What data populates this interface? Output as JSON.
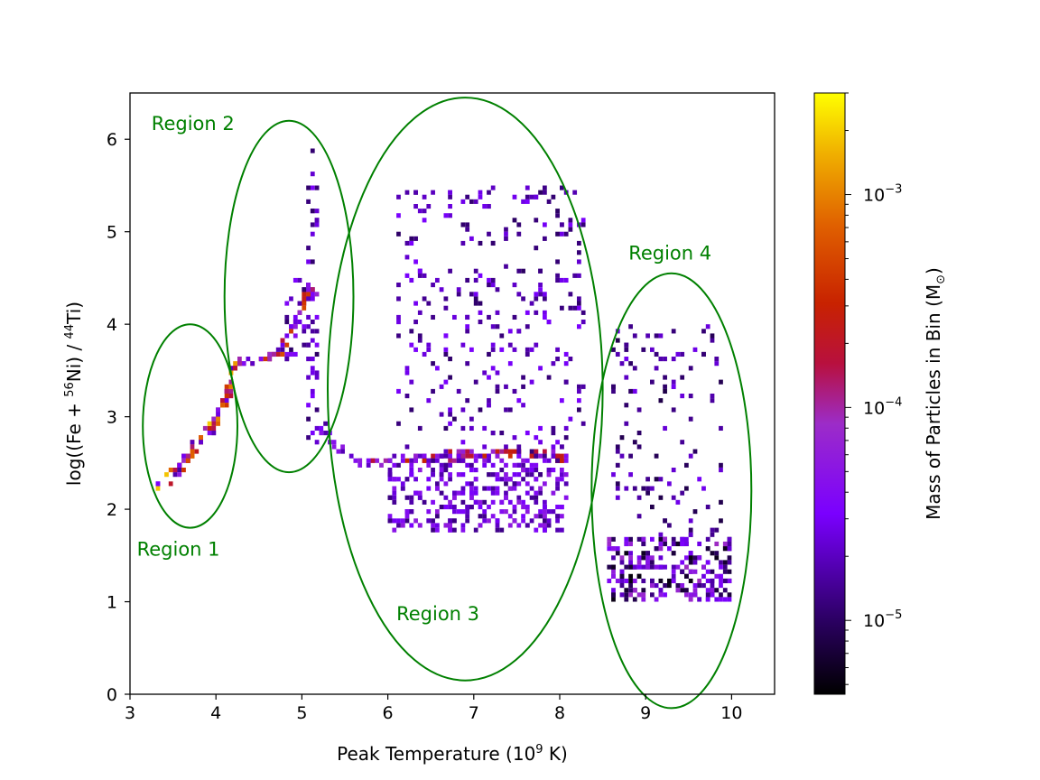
{
  "chart_data": {
    "type": "heatmap",
    "title": "",
    "xlabel": {
      "pre": "Peak Temperature (10",
      "sup": "9",
      "post": " K)"
    },
    "ylabel": {
      "p1": "log((Fe + ",
      "s1": "56",
      "p2": "Ni) / ",
      "s2": "44",
      "p3": "Ti)"
    },
    "xlim": [
      3,
      10.5
    ],
    "ylim": [
      0,
      6.5
    ],
    "xticks": [
      3,
      4,
      5,
      6,
      7,
      8,
      9,
      10
    ],
    "yticks": [
      0,
      1,
      2,
      3,
      4,
      5,
      6
    ],
    "colorbar": {
      "label": {
        "pre": "Mass of Particles in Bin (M",
        "sub": "⊙",
        "post": ")"
      },
      "scale": "log",
      "range": [
        4.5e-06,
        0.003
      ],
      "ticks": [
        {
          "value": 1e-05,
          "base": "10",
          "exp": "−5"
        },
        {
          "value": 0.0001,
          "base": "10",
          "exp": "−4"
        },
        {
          "value": 0.001,
          "base": "10",
          "exp": "−3"
        }
      ],
      "colormap": "gnuplot",
      "colors": [
        "#000000",
        "#7c00ff",
        "#c01e00",
        "#ffff00"
      ]
    },
    "regions": [
      {
        "label": "Region 1",
        "center": [
          3.7,
          2.9
        ],
        "semi_axes": [
          0.55,
          1.1
        ],
        "label_at": [
          3.08,
          1.5
        ]
      },
      {
        "label": "Region 2",
        "center": [
          4.85,
          4.3
        ],
        "semi_axes": [
          0.75,
          1.9
        ],
        "label_at": [
          3.25,
          6.1
        ]
      },
      {
        "label": "Region 3",
        "center": [
          6.9,
          3.3
        ],
        "semi_axes": [
          1.6,
          3.15
        ],
        "label_at": [
          6.1,
          0.8
        ]
      },
      {
        "label": "Region 4",
        "center": [
          9.3,
          2.2
        ],
        "semi_axes": [
          0.93,
          2.35
        ],
        "label_at": [
          8.8,
          4.7
        ]
      }
    ],
    "point_groups": [
      {
        "name": "region1-track",
        "path": [
          [
            3.35,
            2.25
          ],
          [
            3.55,
            2.4
          ],
          [
            3.75,
            2.65
          ],
          [
            3.95,
            2.85
          ],
          [
            4.1,
            3.15
          ],
          [
            4.2,
            3.55
          ]
        ],
        "spread": 0.07,
        "count": 90,
        "mass_range": [
          1.5e-05,
          0.002
        ]
      },
      {
        "name": "region2-track",
        "path": [
          [
            4.2,
            3.55
          ],
          [
            4.5,
            3.62
          ],
          [
            4.72,
            3.7
          ],
          [
            4.9,
            3.95
          ],
          [
            5.05,
            4.3
          ],
          [
            5.15,
            4.35
          ]
        ],
        "spread": 0.04,
        "count": 70,
        "mass_range": [
          1.5e-05,
          0.0006
        ]
      },
      {
        "name": "region2-spike",
        "box": [
          5.05,
          5.18,
          2.7,
          6.0
        ],
        "count": 45,
        "mass_range": [
          1e-05,
          4e-05
        ]
      },
      {
        "name": "region2-right",
        "box": [
          4.8,
          5.15,
          3.6,
          4.5
        ],
        "count": 30,
        "mass_range": [
          1e-05,
          5e-05
        ]
      },
      {
        "name": "band-2.5",
        "path": [
          [
            5.8,
            2.5
          ],
          [
            6.3,
            2.55
          ],
          [
            6.8,
            2.58
          ],
          [
            7.3,
            2.62
          ],
          [
            7.9,
            2.58
          ],
          [
            8.05,
            2.55
          ]
        ],
        "spread": 0.04,
        "count": 90,
        "mass_range": [
          6e-05,
          0.0004
        ]
      },
      {
        "name": "region3-transition",
        "path": [
          [
            5.25,
            2.9
          ],
          [
            5.4,
            2.7
          ],
          [
            5.6,
            2.55
          ],
          [
            5.8,
            2.5
          ]
        ],
        "spread": 0.05,
        "count": 18,
        "mass_range": [
          1.5e-05,
          6e-05
        ]
      },
      {
        "name": "region3-dense",
        "box": [
          6.0,
          8.1,
          1.75,
          2.6
        ],
        "count": 360,
        "mass_range": [
          1.2e-05,
          6e-05
        ]
      },
      {
        "name": "region3-upper",
        "box": [
          6.1,
          8.3,
          2.6,
          5.5
        ],
        "count": 300,
        "mass_range": [
          1e-05,
          3.5e-05
        ]
      },
      {
        "name": "region4-lower",
        "box": [
          8.55,
          10.0,
          1.0,
          1.7
        ],
        "count": 250,
        "mass_range": [
          5e-06,
          9e-05
        ]
      },
      {
        "name": "region4-upper",
        "box": [
          8.6,
          9.9,
          1.7,
          4.0
        ],
        "count": 120,
        "mass_range": [
          8e-06,
          3e-05
        ]
      }
    ]
  }
}
